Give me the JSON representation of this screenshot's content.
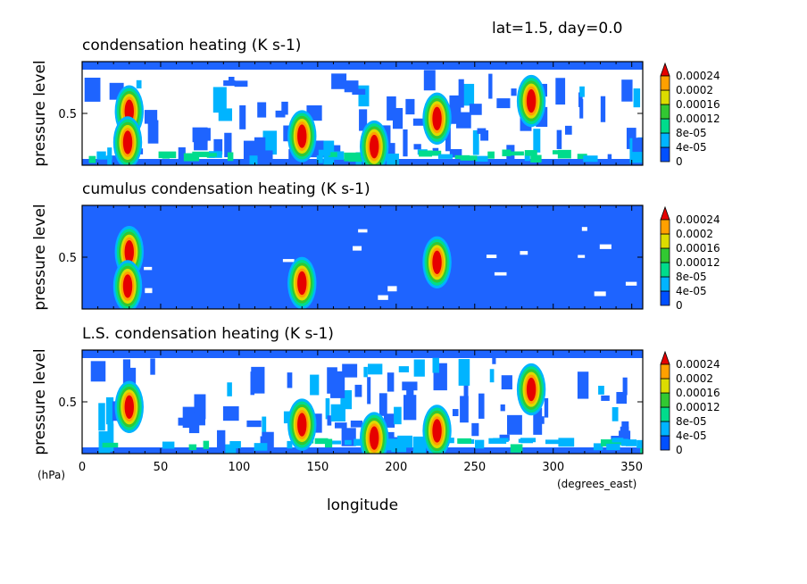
{
  "header": {
    "label": "lat=1.5, day=0.0"
  },
  "axes": {
    "ylabel": "pressure level",
    "yunit": "(hPa)",
    "xlabel": "longitude",
    "xunit": "(degrees_east)",
    "ytick_label": "0.5"
  },
  "chart_data": [
    {
      "type": "heatmap",
      "title": "condensation heating (K s-1)",
      "x_range": [
        0,
        357
      ],
      "y_range": [
        0,
        1
      ],
      "x_ticks": [
        0,
        50,
        100,
        150,
        200,
        250,
        300,
        350
      ],
      "y_ticks": [
        0.5
      ],
      "colorbar": {
        "levels": [
          0,
          4e-05,
          8e-05,
          0.00012,
          0.00016,
          0.0002,
          0.00024
        ],
        "labels": [
          "0",
          "4e-05",
          "8e-05",
          "0.00012",
          "0.00016",
          "0.0002",
          "0.00024"
        ]
      },
      "background": "mixed",
      "features": [
        {
          "lon": 30,
          "lev": 0.52,
          "value": 0.00026
        },
        {
          "lon": 29,
          "lev": 0.22,
          "value": 0.00026
        },
        {
          "lon": 226,
          "lev": 0.45,
          "value": 0.00026
        },
        {
          "lon": 286,
          "lev": 0.62,
          "value": 0.00026
        },
        {
          "lon": 140,
          "lev": 0.28,
          "value": 0.00026
        },
        {
          "lon": 186,
          "lev": 0.18,
          "value": 0.00026
        }
      ]
    },
    {
      "type": "heatmap",
      "title": "cumulus condensation heating (K s-1)",
      "x_range": [
        0,
        357
      ],
      "y_range": [
        0,
        1
      ],
      "x_ticks": [
        0,
        50,
        100,
        150,
        200,
        250,
        300,
        350
      ],
      "y_ticks": [
        0.5
      ],
      "colorbar": {
        "levels": [
          0,
          4e-05,
          8e-05,
          0.00012,
          0.00016,
          0.0002,
          0.00024
        ],
        "labels": [
          "0",
          "4e-05",
          "8e-05",
          "0.00012",
          "0.00016",
          "0.0002",
          "0.00024"
        ]
      },
      "background": "blue",
      "features": [
        {
          "lon": 30,
          "lev": 0.55,
          "value": 0.00026
        },
        {
          "lon": 29,
          "lev": 0.22,
          "value": 0.00026
        },
        {
          "lon": 226,
          "lev": 0.45,
          "value": 0.00026
        },
        {
          "lon": 140,
          "lev": 0.25,
          "value": 0.00026
        }
      ]
    },
    {
      "type": "heatmap",
      "title": "L.S. condensation heating (K s-1)",
      "x_range": [
        0,
        357
      ],
      "y_range": [
        0,
        1
      ],
      "x_ticks": [
        0,
        50,
        100,
        150,
        200,
        250,
        300,
        350
      ],
      "y_ticks": [
        0.5
      ],
      "colorbar": {
        "levels": [
          0,
          4e-05,
          8e-05,
          0.00012,
          0.00016,
          0.0002,
          0.00024
        ],
        "labels": [
          "0",
          "4e-05",
          "8e-05",
          "0.00012",
          "0.00016",
          "0.0002",
          "0.00024"
        ]
      },
      "background": "mixed",
      "features": [
        {
          "lon": 286,
          "lev": 0.62,
          "value": 0.00026
        },
        {
          "lon": 30,
          "lev": 0.45,
          "value": 0.00026
        },
        {
          "lon": 226,
          "lev": 0.22,
          "value": 0.00026
        },
        {
          "lon": 186,
          "lev": 0.15,
          "value": 0.00026
        },
        {
          "lon": 140,
          "lev": 0.28,
          "value": 0.00026
        }
      ]
    }
  ]
}
